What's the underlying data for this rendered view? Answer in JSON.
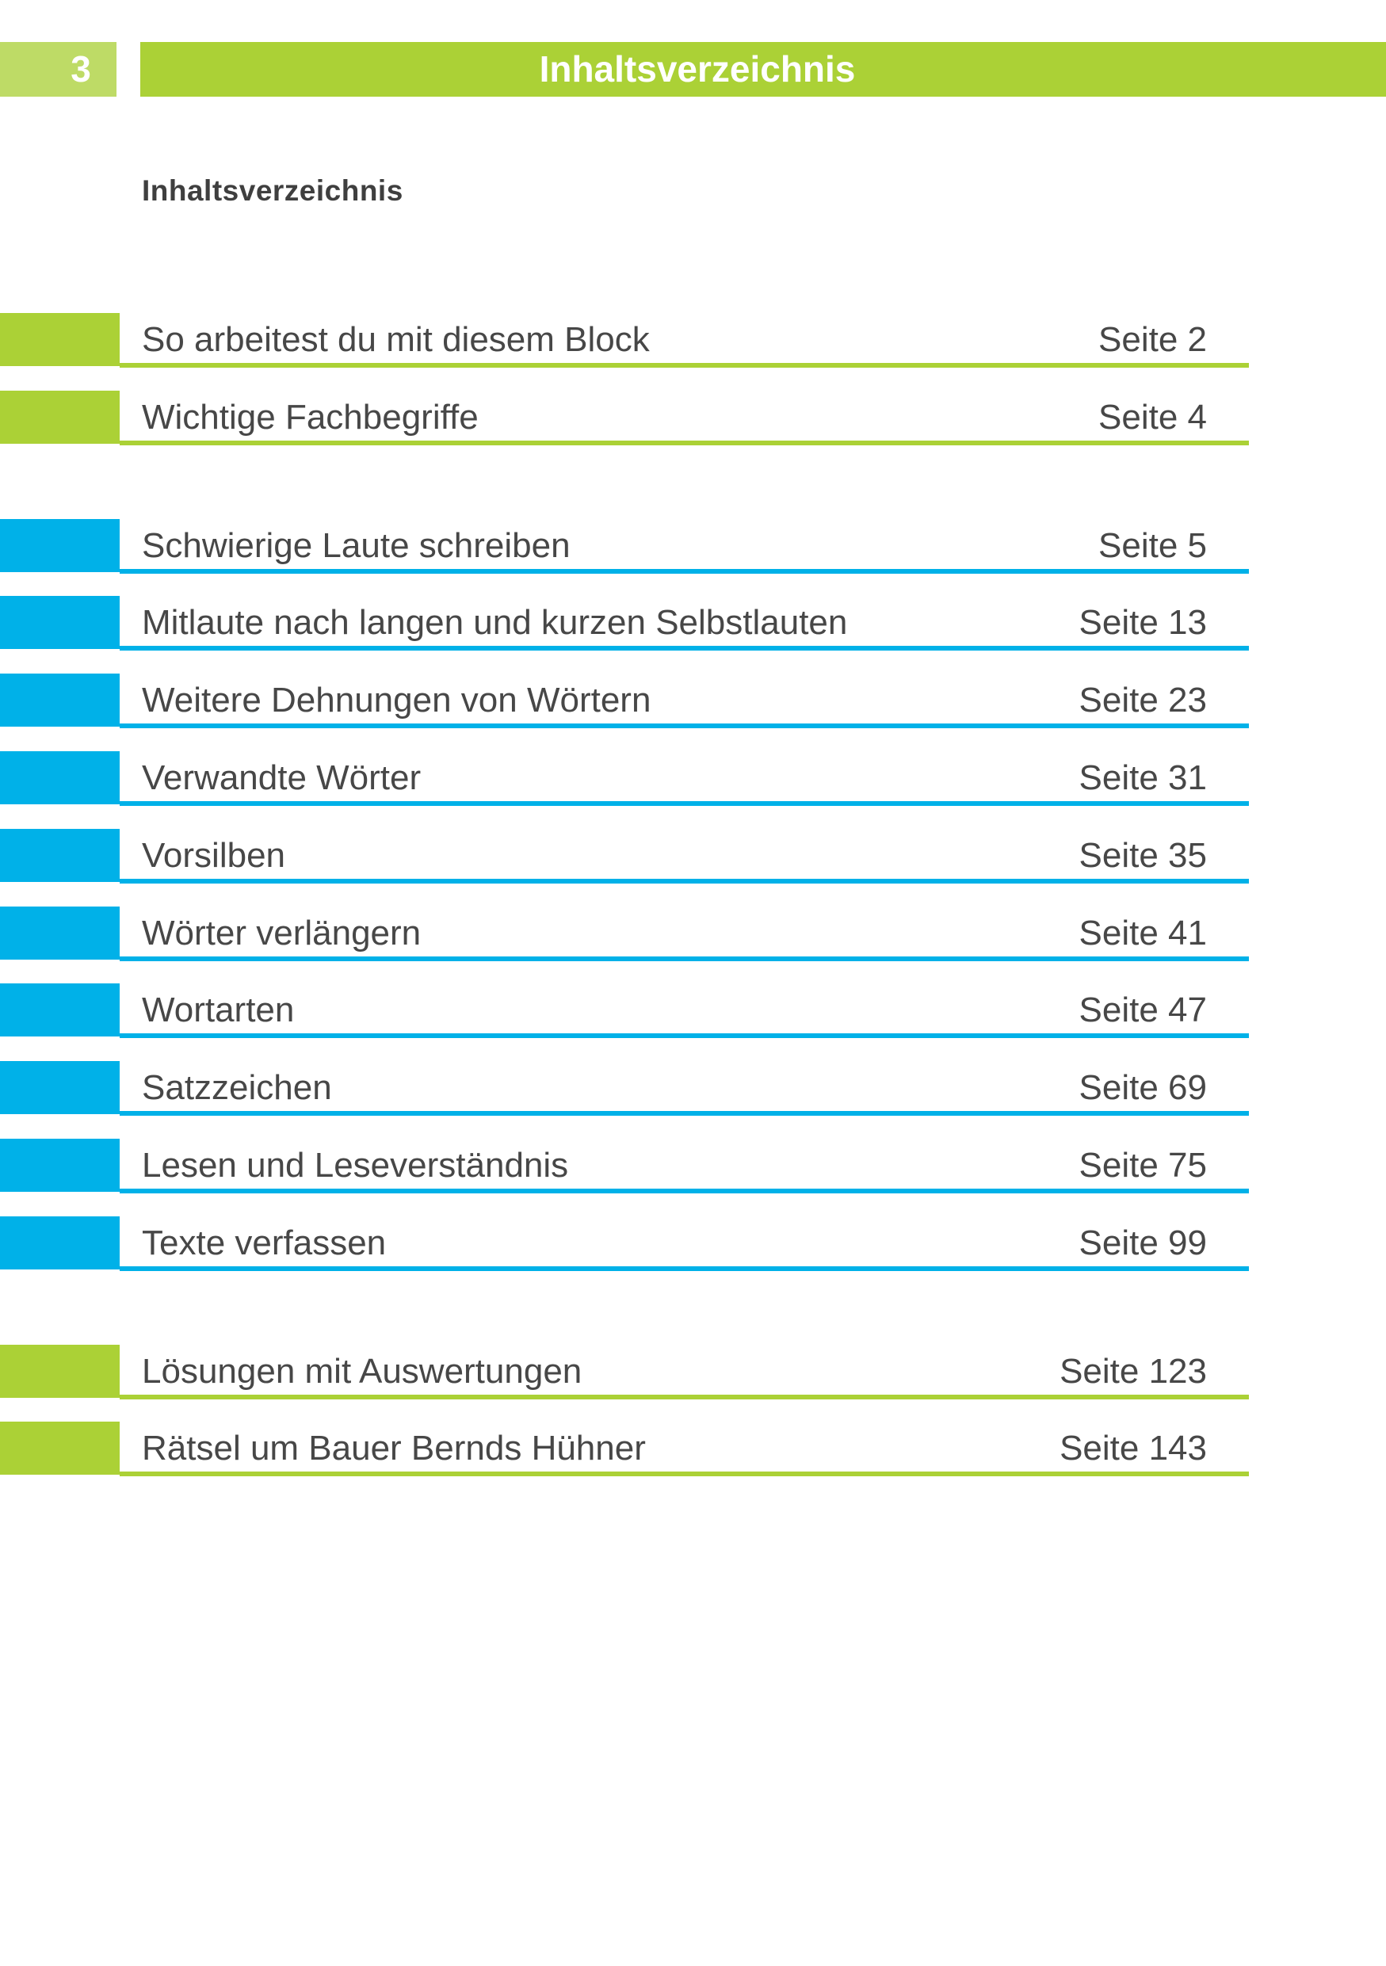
{
  "page_number_badge": "3",
  "header": {
    "title": "Inhaltsverzeichnis"
  },
  "heading": "Inhaltsverzeichnis",
  "toc": {
    "page_word": "Seite",
    "groups": [
      {
        "color": "green",
        "entries": [
          {
            "title": "So arbeitest du mit diesem Block",
            "page": "2"
          },
          {
            "title": "Wichtige Fachbegriffe",
            "page": "4"
          }
        ]
      },
      {
        "color": "blue",
        "entries": [
          {
            "title": "Schwierige Laute schreiben",
            "page": "5"
          },
          {
            "title": "Mitlaute nach langen und kurzen Selbstlauten",
            "page": "13"
          },
          {
            "title": "Weitere Dehnungen von Wörtern",
            "page": "23"
          },
          {
            "title": "Verwandte Wörter",
            "page": "31"
          },
          {
            "title": "Vorsilben",
            "page": "35"
          },
          {
            "title": "Wörter verlängern",
            "page": "41"
          },
          {
            "title": "Wortarten",
            "page": "47"
          },
          {
            "title": "Satzzeichen",
            "page": "69"
          },
          {
            "title": "Lesen und Leseverständnis",
            "page": "75"
          },
          {
            "title": "Texte verfassen",
            "page": "99"
          }
        ]
      },
      {
        "color": "green",
        "entries": [
          {
            "title": "Lösungen mit Auswertungen",
            "page": "123"
          },
          {
            "title": "Rätsel um Bauer Bernds Hühner",
            "page": "143"
          }
        ]
      }
    ]
  },
  "colors": {
    "green": "#abd136",
    "light_green": "#bedb66",
    "blue": "#00b1e8",
    "text": "#474747"
  }
}
